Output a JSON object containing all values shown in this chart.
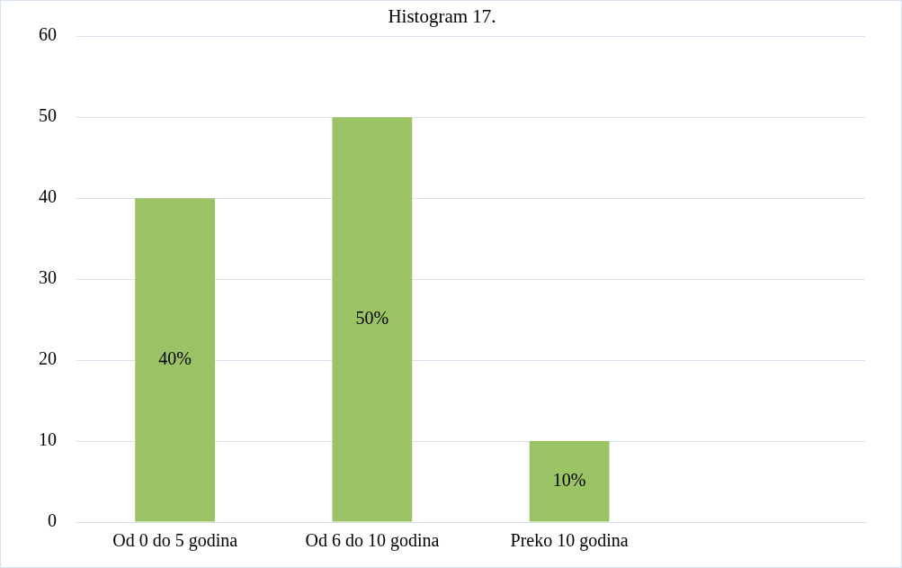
{
  "chart_data": {
    "type": "bar",
    "title": "Histogram 17.",
    "categories": [
      "Od 0 do 5 godina",
      "Od 6 do 10 godina",
      "Preko 10 godina",
      null
    ],
    "values": [
      40,
      50,
      10,
      null
    ],
    "color": "#9cc266",
    "value_labels": [
      "40%",
      "50%",
      "10%",
      null
    ],
    "ylim": [
      0,
      60
    ],
    "yticks": [
      0,
      10,
      20,
      30,
      40,
      50,
      60
    ],
    "grid": "y",
    "legend": false
  }
}
